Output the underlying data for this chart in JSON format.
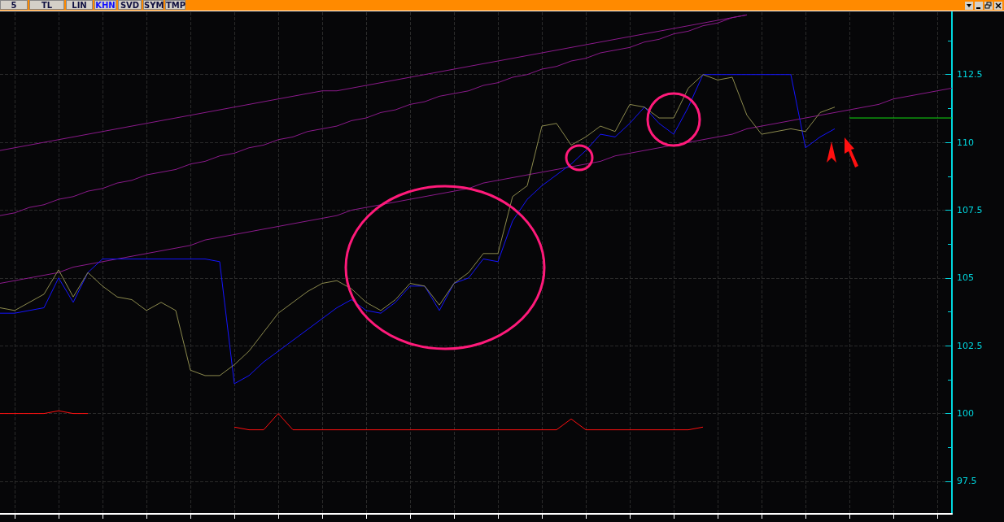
{
  "chart_data": {
    "type": "line",
    "annotations": [
      "5",
      "TL",
      "LIN",
      "KHN",
      "SVD",
      "SYM",
      "TMP"
    ],
    "categories": [
      null,
      null,
      null,
      null,
      null,
      null,
      null,
      null,
      null,
      null,
      null,
      null,
      null,
      null,
      null,
      null,
      null,
      null,
      null,
      null,
      null,
      null,
      null,
      null,
      null,
      null,
      null,
      null,
      null,
      null,
      null,
      null,
      null,
      null,
      null,
      null,
      null,
      null,
      null,
      null,
      null,
      null,
      null,
      null,
      null,
      null,
      null,
      null,
      null,
      null,
      null,
      null,
      null,
      null,
      null,
      null,
      null,
      null,
      null,
      null,
      null,
      null,
      null,
      null,
      null,
      null
    ],
    "ylim": [
      96.3,
      114.8
    ],
    "yticks": [
      97.5,
      {
        "value": 98.75,
        "label": null
      },
      100,
      {
        "value": 101.25,
        "label": null
      },
      102.5,
      {
        "value": 103.75,
        "label": null
      },
      105,
      {
        "value": 106.25,
        "label": null
      },
      107.5,
      {
        "value": 108.75,
        "label": null
      },
      110,
      {
        "value": 111.25,
        "label": null
      },
      112.5,
      {
        "value": 113.75,
        "label": null
      }
    ],
    "tick_labels": "y",
    "grid": true,
    "marker": "none",
    "series": [
      {
        "color": "#8b1a8b",
        "values": [
          109.7,
          109.8,
          109.9,
          110.0,
          110.1,
          110.2,
          110.3,
          110.4,
          110.5,
          110.6,
          110.7,
          110.8,
          110.9,
          111.0,
          111.1,
          111.2,
          111.3,
          111.4,
          111.5,
          111.6,
          111.7,
          111.8,
          111.9,
          111.9,
          112.0,
          112.1,
          112.2,
          112.3,
          112.4,
          112.5,
          112.6,
          112.7,
          112.8,
          112.9,
          113.0,
          113.1,
          113.2,
          113.3,
          113.4,
          113.5,
          113.6,
          113.7,
          113.8,
          113.9,
          114.0,
          114.1,
          114.2,
          114.3,
          114.4,
          114.5,
          114.6,
          114.7,
          null,
          null,
          null,
          null,
          null,
          null,
          null,
          null,
          null,
          null,
          null,
          null,
          null,
          null
        ]
      },
      {
        "color": "#8b1a8b",
        "values": [
          107.3,
          107.4,
          107.6,
          107.7,
          107.9,
          108.0,
          108.2,
          108.3,
          108.5,
          108.6,
          108.8,
          108.9,
          109.0,
          109.2,
          109.3,
          109.5,
          109.6,
          109.8,
          109.9,
          110.1,
          110.2,
          110.4,
          110.5,
          110.6,
          110.8,
          110.9,
          111.1,
          111.2,
          111.4,
          111.5,
          111.7,
          111.8,
          111.9,
          112.1,
          112.2,
          112.4,
          112.5,
          112.7,
          112.8,
          113.0,
          113.1,
          113.3,
          113.4,
          113.5,
          113.7,
          113.8,
          114.0,
          114.1,
          114.3,
          114.4,
          114.6,
          114.7,
          null,
          null,
          null,
          null,
          null,
          null,
          null,
          null,
          null,
          null,
          null,
          null,
          null,
          null
        ]
      },
      {
        "color": "#8b1a8b",
        "values": [
          104.8,
          104.9,
          105.0,
          105.1,
          105.2,
          105.4,
          105.5,
          105.6,
          105.7,
          105.8,
          105.9,
          106.0,
          106.1,
          106.2,
          106.4,
          106.5,
          106.6,
          106.7,
          106.8,
          106.9,
          107.0,
          107.1,
          107.2,
          107.3,
          107.5,
          107.6,
          107.7,
          107.8,
          107.9,
          108.0,
          108.1,
          108.2,
          108.3,
          108.5,
          108.6,
          108.7,
          108.8,
          108.9,
          109.0,
          109.1,
          109.2,
          109.3,
          109.5,
          109.6,
          109.7,
          109.8,
          109.9,
          110.0,
          110.1,
          110.2,
          110.3,
          110.5,
          110.6,
          110.7,
          110.8,
          110.9,
          111.0,
          111.1,
          111.2,
          111.3,
          111.4,
          111.6,
          111.7,
          111.8,
          111.9,
          112.0
        ]
      },
      {
        "color": "#ff1010",
        "values": [
          100.0,
          100.0,
          100.0,
          100.0,
          100.1,
          100.0,
          100.0,
          null,
          null,
          null,
          null,
          null,
          null,
          null,
          null,
          null,
          99.5,
          99.4,
          99.4,
          100.0,
          99.4,
          99.4,
          99.4,
          99.4,
          99.4,
          99.4,
          99.4,
          99.4,
          99.4,
          99.4,
          99.4,
          99.4,
          99.4,
          99.4,
          99.4,
          99.4,
          99.4,
          99.4,
          99.4,
          99.8,
          99.4,
          99.4,
          99.4,
          99.4,
          99.4,
          99.4,
          99.4,
          99.4,
          99.5,
          null,
          null,
          null,
          null,
          null,
          null,
          null,
          null,
          null,
          null,
          null,
          null,
          null,
          null,
          null,
          null,
          null
        ]
      },
      {
        "color": "#1414ff",
        "values": [
          103.7,
          103.7,
          103.8,
          103.9,
          105.0,
          104.1,
          105.2,
          105.7,
          105.7,
          105.7,
          105.7,
          105.7,
          105.7,
          105.7,
          105.7,
          105.6,
          101.1,
          101.4,
          101.9,
          102.3,
          102.7,
          103.1,
          103.5,
          103.9,
          104.2,
          103.8,
          103.7,
          104.1,
          104.7,
          104.7,
          103.8,
          104.8,
          105.0,
          105.7,
          105.6,
          107.1,
          107.9,
          108.4,
          108.8,
          109.2,
          109.7,
          110.3,
          110.2,
          110.7,
          111.3,
          110.7,
          110.3,
          111.3,
          112.5,
          112.5,
          112.5,
          112.5,
          112.5,
          112.5,
          112.5,
          109.8,
          110.2,
          110.5,
          null,
          null,
          null,
          null,
          null,
          null,
          null,
          null
        ]
      },
      {
        "color": "#8c8a4e",
        "values": [
          103.9,
          103.8,
          104.1,
          104.4,
          105.3,
          104.3,
          105.2,
          104.7,
          104.3,
          104.2,
          103.8,
          104.1,
          103.8,
          101.6,
          101.4,
          101.4,
          101.8,
          102.3,
          103.0,
          103.7,
          104.1,
          104.5,
          104.8,
          104.9,
          104.6,
          104.1,
          103.8,
          104.2,
          104.8,
          104.7,
          104.0,
          104.8,
          105.2,
          105.9,
          105.9,
          108.0,
          108.4,
          110.6,
          110.7,
          109.9,
          110.2,
          110.6,
          110.4,
          111.4,
          111.3,
          110.9,
          110.9,
          112.0,
          112.5,
          112.3,
          112.4,
          111.0,
          110.3,
          110.4,
          110.5,
          110.4,
          111.1,
          111.3,
          null,
          null,
          null,
          null,
          null,
          null,
          null,
          null
        ]
      },
      {
        "color": "#10e010",
        "values": [
          null,
          null,
          null,
          null,
          null,
          null,
          null,
          null,
          null,
          null,
          null,
          null,
          null,
          null,
          null,
          null,
          null,
          null,
          null,
          null,
          null,
          null,
          null,
          null,
          null,
          null,
          null,
          null,
          null,
          null,
          null,
          null,
          null,
          null,
          null,
          null,
          null,
          null,
          null,
          null,
          null,
          null,
          null,
          null,
          null,
          null,
          null,
          null,
          null,
          null,
          null,
          null,
          null,
          null,
          null,
          null,
          null,
          null,
          110.9,
          110.9,
          110.9,
          110.9,
          110.9,
          110.9,
          110.9,
          110.9
        ]
      }
    ]
  }
}
